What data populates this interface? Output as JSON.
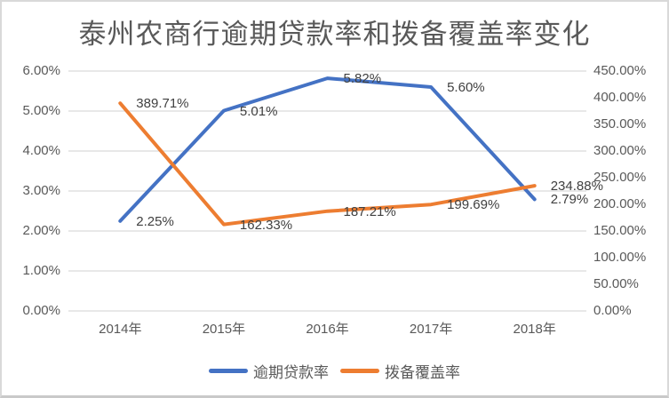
{
  "chart_data": {
    "type": "line",
    "title": "泰州农商行逾期贷款率和拨备覆盖率变化",
    "categories": [
      "2014年",
      "2015年",
      "2016年",
      "2017年",
      "2018年"
    ],
    "series": [
      {
        "name": "逾期贷款率",
        "axis": "left",
        "color": "#4472C4",
        "values": [
          2.25,
          5.01,
          5.82,
          5.6,
          2.79
        ],
        "data_labels": [
          "2.25%",
          "5.01%",
          "5.82%",
          "5.60%",
          "2.79%"
        ]
      },
      {
        "name": "拨备覆盖率",
        "axis": "right",
        "color": "#ED7D31",
        "values": [
          389.71,
          162.33,
          187.21,
          199.69,
          234.88
        ],
        "data_labels": [
          "389.71%",
          "162.33%",
          "187.21%",
          "199.69%",
          "234.88%"
        ]
      }
    ],
    "left_axis": {
      "min": 0,
      "max": 6,
      "step": 1,
      "tick_labels": [
        "0.00%",
        "1.00%",
        "2.00%",
        "3.00%",
        "4.00%",
        "5.00%",
        "6.00%"
      ]
    },
    "right_axis": {
      "min": 0,
      "max": 450,
      "step": 50,
      "tick_labels": [
        "0.00%",
        "50.00%",
        "100.00%",
        "150.00%",
        "200.00%",
        "250.00%",
        "300.00%",
        "350.00%",
        "400.00%",
        "450.00%"
      ]
    },
    "grid": true,
    "legend_position": "bottom",
    "colors": {
      "grid": "#D9D9D9",
      "tick_text": "#595959",
      "data_label_text": "#404040",
      "title_text": "#595959",
      "border": "#D9D9D9"
    }
  }
}
